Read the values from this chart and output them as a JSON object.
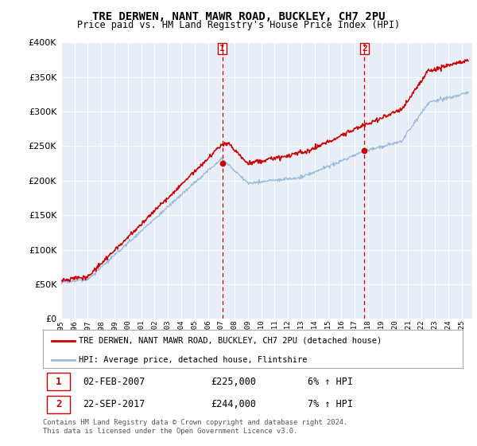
{
  "title": "TRE DERWEN, NANT MAWR ROAD, BUCKLEY, CH7 2PU",
  "subtitle": "Price paid vs. HM Land Registry's House Price Index (HPI)",
  "ylim": [
    0,
    400000
  ],
  "yticks": [
    0,
    50000,
    100000,
    150000,
    200000,
    250000,
    300000,
    350000,
    400000
  ],
  "xlim_start": 1995.0,
  "xlim_end": 2025.8,
  "sale1_x": 2007.085,
  "sale1_y": 225000,
  "sale2_x": 2017.73,
  "sale2_y": 244000,
  "legend_house_label": "TRE DERWEN, NANT MAWR ROAD, BUCKLEY, CH7 2PU (detached house)",
  "legend_hpi_label": "HPI: Average price, detached house, Flintshire",
  "ann1_date": "02-FEB-2007",
  "ann1_price": "£225,000",
  "ann1_hpi": "6% ↑ HPI",
  "ann2_date": "22-SEP-2017",
  "ann2_price": "£244,000",
  "ann2_hpi": "7% ↑ HPI",
  "footer": "Contains HM Land Registry data © Crown copyright and database right 2024.\nThis data is licensed under the Open Government Licence v3.0.",
  "house_color": "#cc0000",
  "hpi_color": "#99bbdd",
  "vline_color": "#cc0000",
  "bg_color": "#e8eef8"
}
